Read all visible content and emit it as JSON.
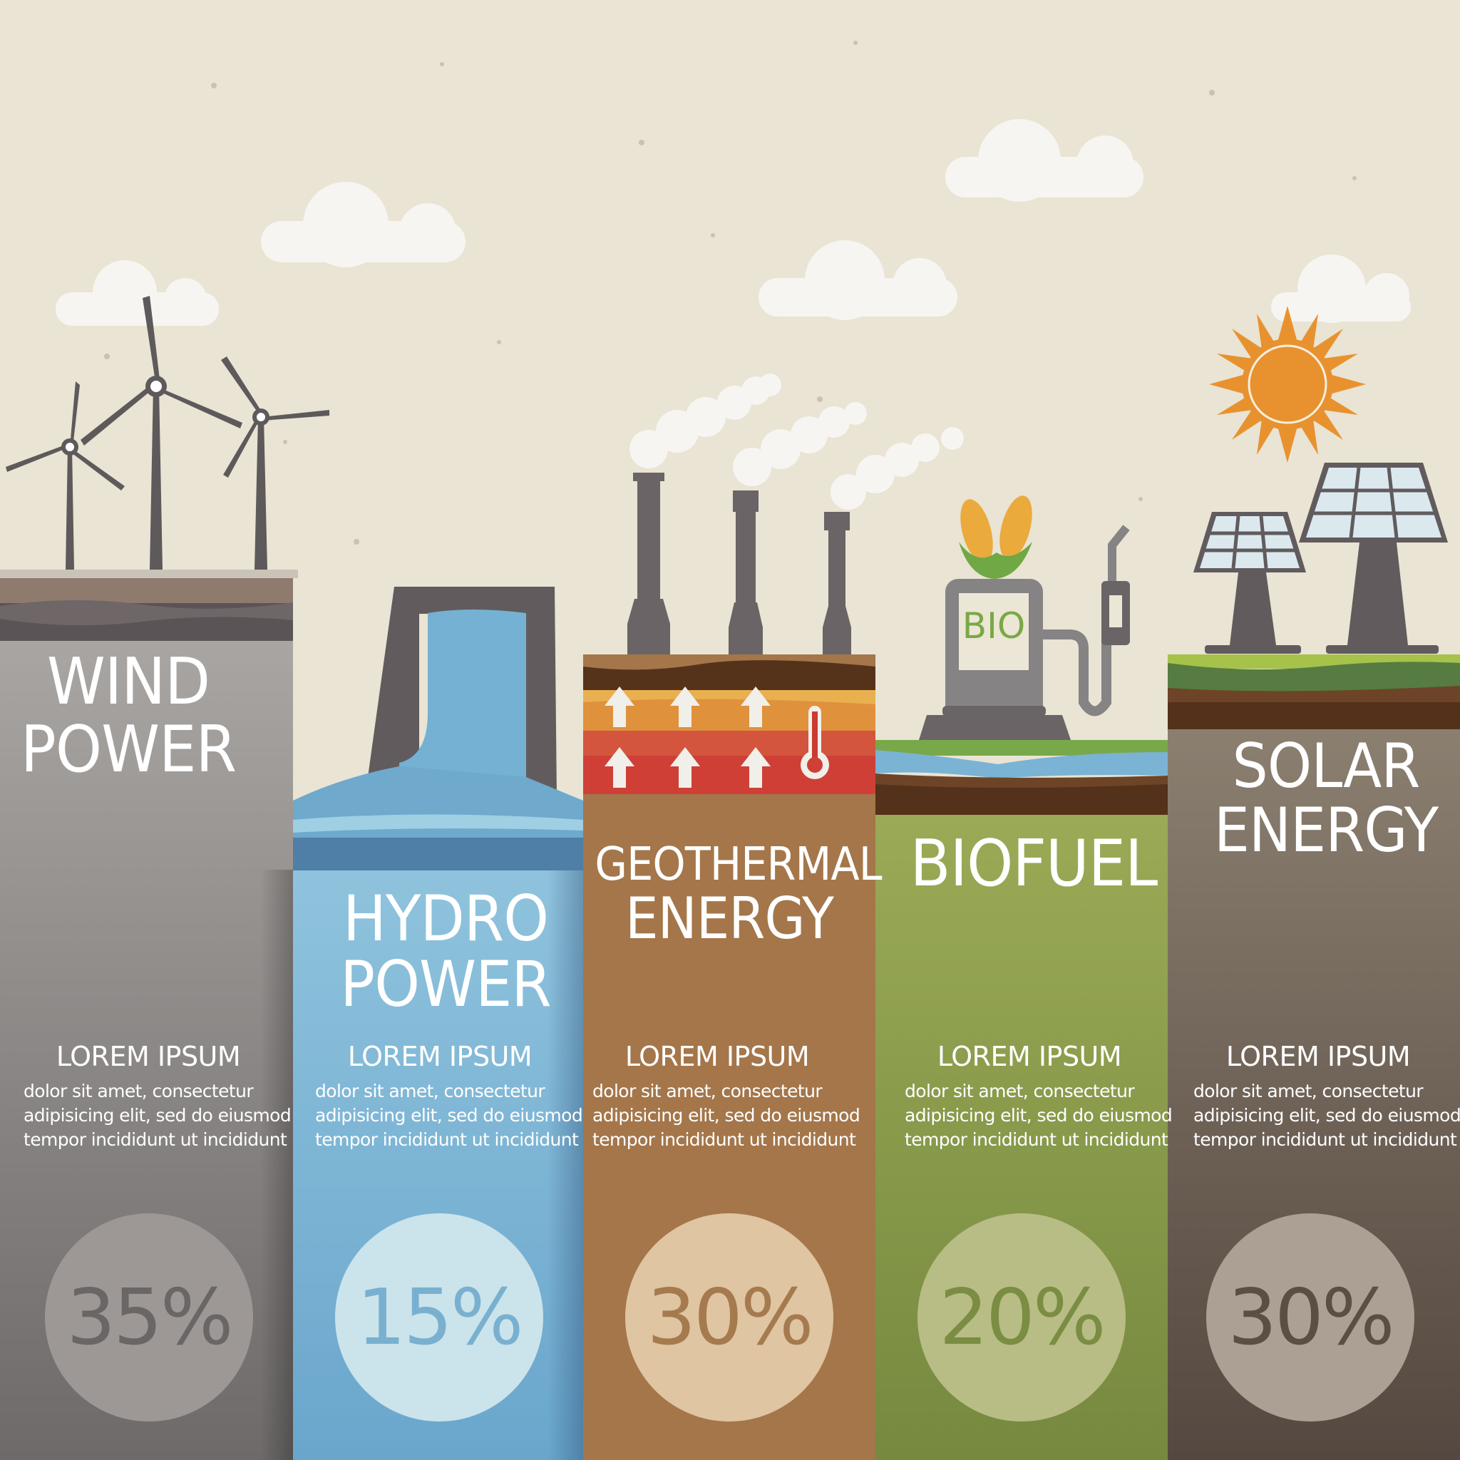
{
  "sections": [
    {
      "title_lines": [
        "WIND",
        "POWER"
      ],
      "heading": "LOREM IPSUM",
      "body_lines": [
        "dolor sit amet, consectetur",
        "adipisicing elit, sed do eiusmod",
        "tempor incididunt ut  incididunt"
      ],
      "percent": "35%",
      "share": 35,
      "color": "#8a8685",
      "circle_color": "#9d9895",
      "percent_color": "#6a6665",
      "icon": "wind-turbines-icon"
    },
    {
      "title_lines": [
        "HYDRO",
        "POWER"
      ],
      "heading": "LOREM IPSUM",
      "body_lines": [
        "dolor sit amet, consectetur",
        "adipisicing elit, sed do eiusmod",
        "tempor incididunt ut  incididunt"
      ],
      "percent": "15%",
      "share": 15,
      "color": "#79b1d3",
      "circle_color": "#cbe3ea",
      "percent_color": "#79b0d0",
      "icon": "dam-icon"
    },
    {
      "title_lines": [
        "GEOTHERMAL",
        "ENERGY"
      ],
      "heading": "LOREM IPSUM",
      "body_lines": [
        "dolor sit amet, consectetur",
        "adipisicing elit, sed do eiusmod",
        "tempor incididunt ut  incididunt"
      ],
      "percent": "30%",
      "share": 30,
      "color": "#a4764a",
      "circle_color": "#dfc5a2",
      "percent_color": "#a57a4e",
      "icon": "geothermal-plant-icon"
    },
    {
      "title_lines": [
        "BIOFUEL"
      ],
      "heading": "LOREM IPSUM",
      "body_lines": [
        "dolor sit amet, consectetur",
        "adipisicing elit, sed do eiusmod",
        "tempor incididunt ut  incididunt"
      ],
      "percent": "20%",
      "share": 20,
      "color": "#8ca04e",
      "circle_color": "#b8bd86",
      "percent_color": "#7a8d42",
      "icon": "bio-fuel-pump-icon"
    },
    {
      "title_lines": [
        "SOLAR",
        "ENERGY"
      ],
      "heading": "LOREM IPSUM",
      "body_lines": [
        "dolor sit amet, consectetur",
        "adipisicing elit, sed do eiusmod",
        "tempor incididunt ut  incididunt"
      ],
      "percent": "30%",
      "share": 30,
      "color": "#746759",
      "circle_color": "#aba093",
      "percent_color": "#5b4e44",
      "icon": "solar-panels-icon"
    }
  ],
  "pump_label": "BIO",
  "background_color": "#e9e4d3"
}
